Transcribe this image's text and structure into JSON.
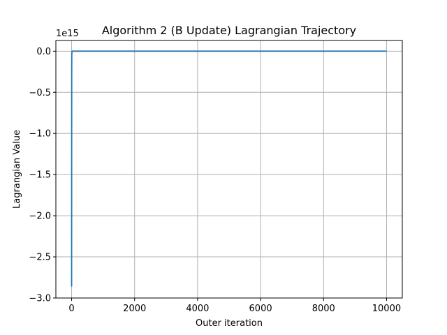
{
  "chart_data": {
    "type": "line",
    "title": "Algorithm 2 (B Update) Lagrangian Trajectory",
    "xlabel": "Outer iteration",
    "ylabel": "Lagrangian Value",
    "y_offset_label": "1e15",
    "xlim": [
      -500,
      10500
    ],
    "ylim": [
      -3000000000000000.0,
      130000000000000.0
    ],
    "x_ticks": [
      0,
      2000,
      4000,
      6000,
      8000,
      10000
    ],
    "x_tick_labels": [
      "0",
      "2000",
      "4000",
      "6000",
      "8000",
      "10000"
    ],
    "y_ticks": [
      0.0,
      -500000000000000.0,
      -1000000000000000.0,
      -1500000000000000.0,
      -2000000000000000.0,
      -2500000000000000.0,
      -3000000000000000.0
    ],
    "y_tick_labels": [
      "0.0",
      "−0.5",
      "−1.0",
      "−1.5",
      "−2.0",
      "−2.5",
      "−3.0"
    ],
    "grid": true,
    "series": [
      {
        "color": "#1f77b4",
        "x": [
          0,
          1,
          2,
          3,
          5,
          10,
          20,
          100,
          1000,
          5000,
          10000
        ],
        "y": [
          -2860000000000000.0,
          -2000000000000000.0,
          -1000000000000000.0,
          -300000000000000.0,
          -50000000000000.0,
          -10000000000000.0,
          0,
          0,
          0,
          0,
          0
        ]
      }
    ]
  }
}
